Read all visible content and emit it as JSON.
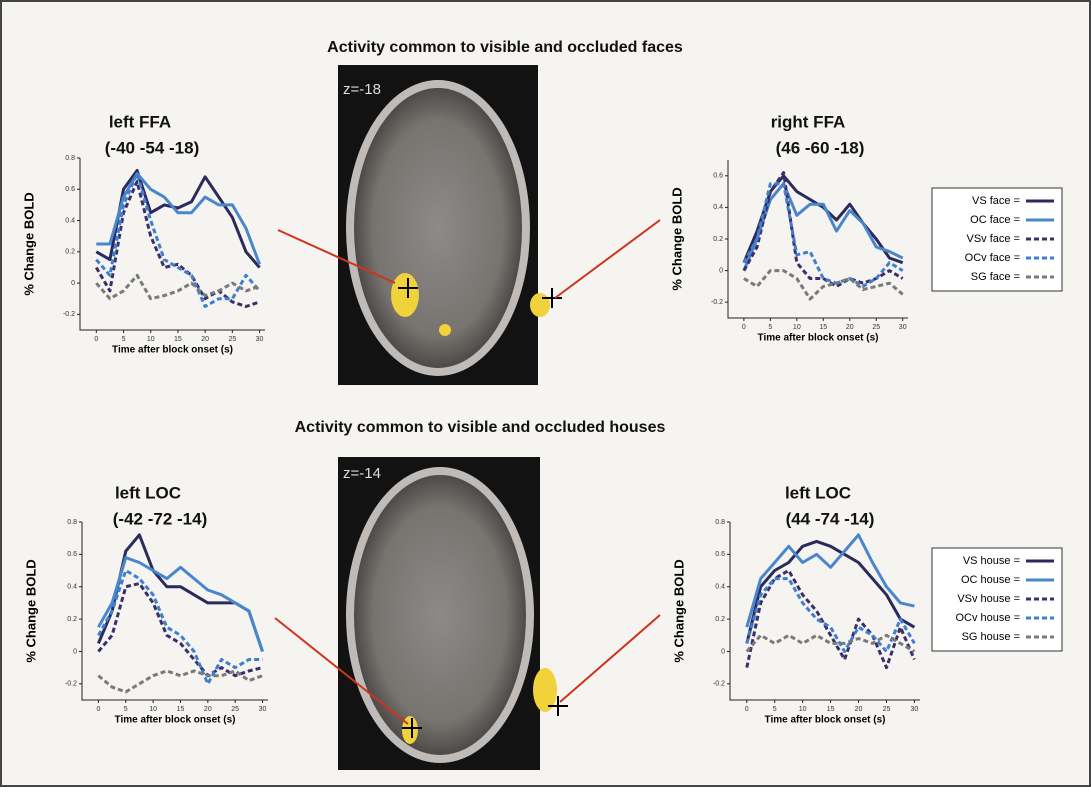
{
  "figure": {
    "faces_heading": "Activity common to visible and occluded faces",
    "houses_heading": "Activity common to visible and occluded houses",
    "slice_top": "z=-18",
    "slice_bottom": "z=-14"
  },
  "chart_data": [
    {
      "type": "line",
      "title": "left FFA",
      "subtitle": "(-40 -54 -18)",
      "x_label": "Time after block onset (s)",
      "y_label": "% Change  BOLD",
      "x": [
        0,
        2.5,
        5,
        7.5,
        10,
        12.5,
        15,
        17.5,
        20,
        22.5,
        25,
        27.5,
        30
      ],
      "xlim": [
        -3,
        31
      ],
      "xticks": [
        0,
        5,
        10,
        15,
        20,
        25,
        30
      ],
      "ylim": [
        -0.3,
        0.8
      ],
      "yticks": [
        -0.2,
        0,
        0.2,
        0.4,
        0.6,
        0.8
      ],
      "series": [
        {
          "name": "VS face =",
          "color": "#2b2a5c",
          "style": "solid",
          "values": [
            0.2,
            0.15,
            0.6,
            0.72,
            0.45,
            0.5,
            0.48,
            0.52,
            0.68,
            0.55,
            0.42,
            0.2,
            0.1
          ]
        },
        {
          "name": "OC face =",
          "color": "#4a86cc",
          "style": "solid",
          "values": [
            0.25,
            0.25,
            0.55,
            0.7,
            0.6,
            0.55,
            0.45,
            0.45,
            0.55,
            0.5,
            0.5,
            0.35,
            0.12
          ]
        },
        {
          "name": "VSv face =",
          "color": "#3a2f6a",
          "style": "dashed",
          "values": [
            0.1,
            -0.05,
            0.45,
            0.65,
            0.3,
            0.1,
            0.12,
            0.05,
            -0.1,
            -0.05,
            -0.12,
            -0.15,
            -0.12
          ]
        },
        {
          "name": "OCv face =",
          "color": "#3f7fd0",
          "style": "dashed",
          "values": [
            0.15,
            0.05,
            0.5,
            0.7,
            0.4,
            0.15,
            0.1,
            0.05,
            -0.15,
            -0.1,
            -0.1,
            0.05,
            -0.05
          ]
        },
        {
          "name": "SG face =",
          "color": "#7a7a7a",
          "style": "dashed",
          "values": [
            0,
            -0.1,
            -0.05,
            0.05,
            -0.1,
            -0.08,
            -0.05,
            0,
            -0.08,
            -0.05,
            0,
            -0.05,
            -0.02
          ]
        }
      ]
    },
    {
      "type": "line",
      "title": "right FFA",
      "subtitle": "(46 -60 -18)",
      "x_label": "Time after block onset (s)",
      "y_label": "% Change  BOLD",
      "x": [
        0,
        2.5,
        5,
        7.5,
        10,
        12.5,
        15,
        17.5,
        20,
        22.5,
        25,
        27.5,
        30
      ],
      "xlim": [
        -3,
        31
      ],
      "xticks": [
        0,
        5,
        10,
        15,
        20,
        25,
        30
      ],
      "ylim": [
        -0.3,
        0.7
      ],
      "yticks": [
        -0.2,
        0,
        0.2,
        0.4,
        0.6
      ],
      "series": [
        {
          "color": "#2b2a5c",
          "style": "solid",
          "values": [
            0.05,
            0.25,
            0.5,
            0.6,
            0.5,
            0.45,
            0.4,
            0.32,
            0.42,
            0.3,
            0.2,
            0.08,
            0.05
          ]
        },
        {
          "color": "#4a86cc",
          "style": "solid",
          "values": [
            0,
            0.2,
            0.45,
            0.55,
            0.35,
            0.42,
            0.42,
            0.25,
            0.38,
            0.3,
            0.15,
            0.12,
            0.08
          ]
        },
        {
          "color": "#3a2f6a",
          "style": "dashed",
          "values": [
            0,
            0.15,
            0.5,
            0.62,
            0.05,
            -0.05,
            -0.05,
            -0.1,
            -0.05,
            -0.08,
            -0.05,
            0,
            -0.05
          ]
        },
        {
          "color": "#3f7fd0",
          "style": "dashed",
          "values": [
            0.05,
            0.2,
            0.55,
            0.55,
            0.1,
            0.12,
            -0.05,
            -0.08,
            -0.05,
            -0.1,
            -0.05,
            0.05,
            0
          ]
        },
        {
          "color": "#7a7a7a",
          "style": "dashed",
          "values": [
            -0.05,
            -0.1,
            0,
            0,
            -0.05,
            -0.18,
            -0.1,
            -0.08,
            -0.05,
            -0.12,
            -0.1,
            -0.08,
            -0.15
          ]
        }
      ]
    },
    {
      "type": "line",
      "title": "left LOC",
      "subtitle": "(-42 -72 -14)",
      "x_label": "Time after block onset (s)",
      "y_label": "% Change  BOLD",
      "x": [
        0,
        2.5,
        5,
        7.5,
        10,
        12.5,
        15,
        17.5,
        20,
        22.5,
        25,
        27.5,
        30
      ],
      "xlim": [
        -3,
        31
      ],
      "xticks": [
        0,
        5,
        10,
        15,
        20,
        25,
        30
      ],
      "ylim": [
        -0.3,
        0.8
      ],
      "yticks": [
        -0.2,
        0,
        0.2,
        0.4,
        0.6,
        0.8
      ],
      "series": [
        {
          "name": "VS house =",
          "color": "#2b2a5c",
          "style": "solid",
          "values": [
            0.05,
            0.25,
            0.62,
            0.72,
            0.5,
            0.4,
            0.4,
            0.35,
            0.3,
            0.3,
            0.3,
            0.25,
            0
          ]
        },
        {
          "name": "OC house =",
          "color": "#4a86cc",
          "style": "solid",
          "values": [
            0.15,
            0.3,
            0.58,
            0.55,
            0.5,
            0.45,
            0.52,
            0.45,
            0.38,
            0.35,
            0.3,
            0.25,
            0
          ]
        },
        {
          "name": "VSv house =",
          "color": "#3a2f6a",
          "style": "dashed",
          "values": [
            0,
            0.1,
            0.4,
            0.42,
            0.3,
            0.1,
            0.05,
            -0.05,
            -0.15,
            -0.1,
            -0.15,
            -0.12,
            -0.1
          ]
        },
        {
          "name": "OCv house =",
          "color": "#3f7fd0",
          "style": "dashed",
          "values": [
            0.1,
            0.25,
            0.5,
            0.45,
            0.35,
            0.15,
            0.1,
            0,
            -0.2,
            -0.05,
            -0.1,
            -0.05,
            -0.05
          ]
        },
        {
          "name": "SG house =",
          "color": "#7a7a7a",
          "style": "dashed",
          "values": [
            -0.15,
            -0.22,
            -0.25,
            -0.2,
            -0.15,
            -0.12,
            -0.15,
            -0.12,
            -0.15,
            -0.15,
            -0.12,
            -0.18,
            -0.15
          ]
        }
      ]
    },
    {
      "type": "line",
      "title": "left LOC",
      "subtitle": "(44 -74 -14)",
      "x_label": "Time after block onset (s)",
      "y_label": "% Change  BOLD",
      "x": [
        0,
        2.5,
        5,
        7.5,
        10,
        12.5,
        15,
        17.5,
        20,
        22.5,
        25,
        27.5,
        30
      ],
      "xlim": [
        -3,
        31
      ],
      "xticks": [
        0,
        5,
        10,
        15,
        20,
        25,
        30
      ],
      "ylim": [
        -0.3,
        0.8
      ],
      "yticks": [
        -0.2,
        0,
        0.2,
        0.4,
        0.6,
        0.8
      ],
      "series": [
        {
          "color": "#2b2a5c",
          "style": "solid",
          "values": [
            0.05,
            0.4,
            0.5,
            0.55,
            0.65,
            0.68,
            0.65,
            0.6,
            0.55,
            0.45,
            0.35,
            0.2,
            0.15
          ]
        },
        {
          "color": "#4a86cc",
          "style": "solid",
          "values": [
            0.15,
            0.45,
            0.55,
            0.65,
            0.55,
            0.6,
            0.52,
            0.62,
            0.72,
            0.55,
            0.4,
            0.3,
            0.28
          ]
        },
        {
          "color": "#3a2f6a",
          "style": "dashed",
          "values": [
            -0.1,
            0.3,
            0.45,
            0.5,
            0.35,
            0.25,
            0.1,
            -0.05,
            0.2,
            0.1,
            -0.1,
            0.15,
            -0.05
          ]
        },
        {
          "color": "#3f7fd0",
          "style": "dashed",
          "values": [
            0.05,
            0.35,
            0.45,
            0.45,
            0.3,
            0.2,
            0.15,
            0,
            0.15,
            0.1,
            0,
            0.2,
            0.05
          ]
        },
        {
          "color": "#7a7a7a",
          "style": "dashed",
          "values": [
            0,
            0.1,
            0.05,
            0.1,
            0.05,
            0.1,
            0.05,
            0.05,
            0.08,
            0.05,
            0.1,
            0.05,
            0
          ]
        }
      ]
    }
  ]
}
